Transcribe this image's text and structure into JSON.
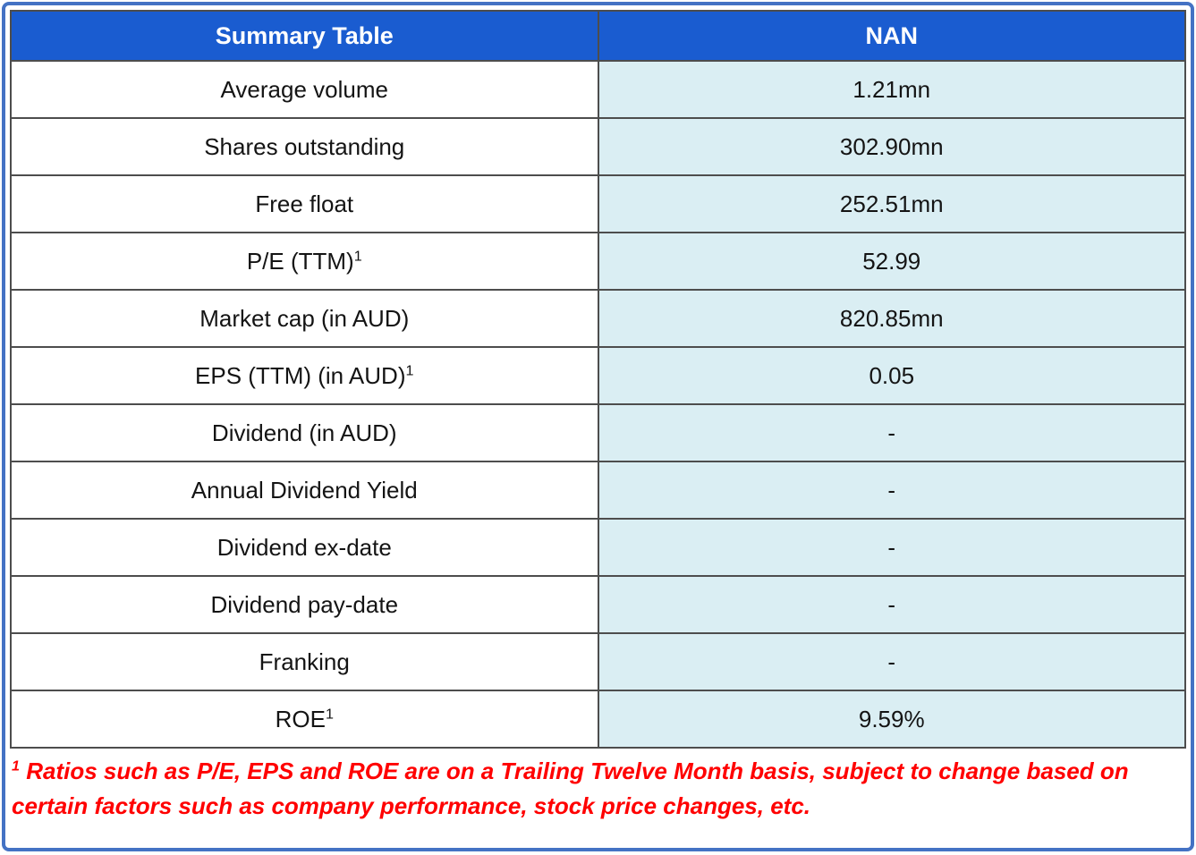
{
  "colors": {
    "frame-blue": "#4472C4",
    "header-bg": "#1A5CD0",
    "header-text": "#FFFFFF",
    "value-cell-bg": "#DAEEF3",
    "grid-border": "#4D4D4D",
    "footnote-red": "#FF0000",
    "cell-text": "#141414"
  },
  "table": {
    "header": {
      "left": "Summary Table",
      "right": "NAN"
    },
    "rows": [
      {
        "label": "Average volume",
        "sup": "",
        "value": "1.21mn"
      },
      {
        "label": "Shares outstanding",
        "sup": "",
        "value": "302.90mn"
      },
      {
        "label": "Free float",
        "sup": "",
        "value": "252.51mn"
      },
      {
        "label": "P/E (TTM)",
        "sup": "1",
        "value": "52.99"
      },
      {
        "label": "Market cap (in AUD)",
        "sup": "",
        "value": "820.85mn"
      },
      {
        "label": "EPS (TTM) (in AUD)",
        "sup": "1",
        "value": "0.05"
      },
      {
        "label": "Dividend (in AUD)",
        "sup": "",
        "value": "-"
      },
      {
        "label": "Annual Dividend Yield",
        "sup": "",
        "value": "-"
      },
      {
        "label": "Dividend ex-date",
        "sup": "",
        "value": "-"
      },
      {
        "label": "Dividend pay-date",
        "sup": "",
        "value": "-"
      },
      {
        "label": "Franking",
        "sup": "",
        "value": "-"
      },
      {
        "label": "ROE",
        "sup": "1",
        "value": "9.59%"
      }
    ]
  },
  "footnote": {
    "sup": "1",
    "text": "Ratios such as P/E, EPS and ROE are on a Trailing Twelve Month basis, subject to change based on certain factors such as company performance, stock price changes, etc."
  },
  "chart_data": {
    "type": "table",
    "title": "Summary Table",
    "columns": [
      "Summary Table",
      "NAN"
    ],
    "rows": [
      [
        "Average volume",
        "1.21mn"
      ],
      [
        "Shares outstanding",
        "302.90mn"
      ],
      [
        "Free float",
        "252.51mn"
      ],
      [
        "P/E (TTM)¹",
        "52.99"
      ],
      [
        "Market cap (in AUD)",
        "820.85mn"
      ],
      [
        "EPS (TTM) (in AUD)¹",
        "0.05"
      ],
      [
        "Dividend (in AUD)",
        "-"
      ],
      [
        "Annual Dividend Yield",
        "-"
      ],
      [
        "Dividend ex-date",
        "-"
      ],
      [
        "Dividend pay-date",
        "-"
      ],
      [
        "Franking",
        "-"
      ],
      [
        "ROE¹",
        "9.59%"
      ]
    ],
    "footnote": "¹ Ratios such as P/E, EPS and ROE are on a Trailing Twelve Month basis, subject to change based on certain factors such as company performance, stock price changes, etc."
  }
}
